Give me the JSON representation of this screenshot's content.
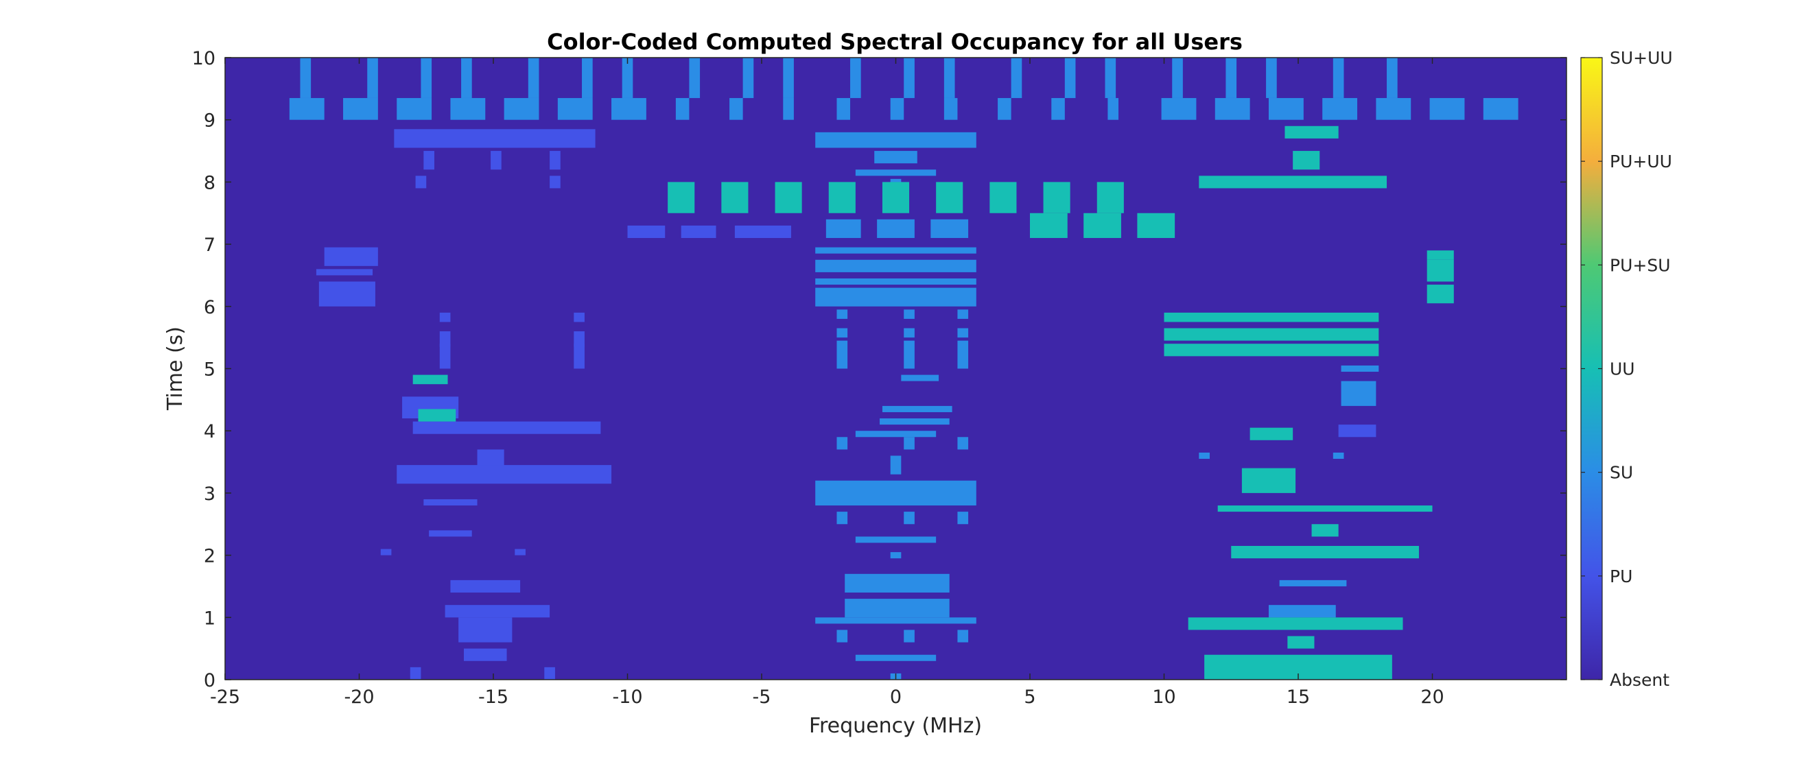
{
  "chart_data": {
    "type": "heatmap",
    "title": "Color-Coded Computed Spectral Occupancy for all Users",
    "xlabel": "Frequency (MHz)",
    "ylabel": "Time (s)",
    "xlim": [
      -25,
      25
    ],
    "ylim": [
      0,
      10
    ],
    "xticks": [
      -25,
      -20,
      -15,
      -10,
      -5,
      0,
      5,
      10,
      15,
      20
    ],
    "xtick_labels": [
      "-25",
      "-20",
      "-15",
      "-10",
      "-5",
      "0",
      "5",
      "10",
      "15",
      "20"
    ],
    "yticks": [
      0,
      1,
      2,
      3,
      4,
      5,
      6,
      7,
      8,
      9,
      10
    ],
    "ytick_labels": [
      "0",
      "1",
      "2",
      "3",
      "4",
      "5",
      "6",
      "7",
      "8",
      "9",
      "10"
    ],
    "background_class": "Absent",
    "colorbar": {
      "labels": [
        "Absent",
        "PU",
        "SU",
        "UU",
        "PU+SU",
        "PU+UU",
        "SU+UU"
      ],
      "colors": [
        "#3e26a8",
        "#4353e8",
        "#2b8de6",
        "#17bfb4",
        "#4ec974",
        "#f4ae3d",
        "#f9f716"
      ]
    },
    "classes": {
      "PU": "#4353e8",
      "SU": "#2b8de6",
      "UU": "#17bfb4"
    },
    "occupancy": [
      {
        "x0": -18.7,
        "x1": -11.2,
        "y0": 8.55,
        "y1": 8.85,
        "class": "PU"
      },
      {
        "x0": -17.6,
        "x1": -17.2,
        "y0": 8.2,
        "y1": 8.5,
        "class": "PU"
      },
      {
        "x0": -15.1,
        "x1": -14.7,
        "y0": 8.2,
        "y1": 8.5,
        "class": "PU"
      },
      {
        "x0": -12.9,
        "x1": -12.5,
        "y0": 8.2,
        "y1": 8.5,
        "class": "PU"
      },
      {
        "x0": -17.9,
        "x1": -17.5,
        "y0": 7.9,
        "y1": 8.1,
        "class": "PU"
      },
      {
        "x0": -12.9,
        "x1": -12.5,
        "y0": 7.9,
        "y1": 8.1,
        "class": "PU"
      },
      {
        "x0": -10.0,
        "x1": -8.6,
        "y0": 7.1,
        "y1": 7.3,
        "class": "PU"
      },
      {
        "x0": -8.0,
        "x1": -6.7,
        "y0": 7.1,
        "y1": 7.3,
        "class": "PU"
      },
      {
        "x0": -6.0,
        "x1": -3.9,
        "y0": 7.1,
        "y1": 7.3,
        "class": "PU"
      },
      {
        "x0": -21.3,
        "x1": -19.3,
        "y0": 6.65,
        "y1": 6.95,
        "class": "PU"
      },
      {
        "x0": -21.6,
        "x1": -19.5,
        "y0": 6.5,
        "y1": 6.6,
        "class": "PU"
      },
      {
        "x0": -21.5,
        "x1": -19.4,
        "y0": 6.0,
        "y1": 6.4,
        "class": "PU"
      },
      {
        "x0": -17.0,
        "x1": -16.6,
        "y0": 5.75,
        "y1": 5.9,
        "class": "PU"
      },
      {
        "x0": -17.0,
        "x1": -16.6,
        "y0": 5.35,
        "y1": 5.6,
        "class": "PU"
      },
      {
        "x0": -17.0,
        "x1": -16.6,
        "y0": 5.0,
        "y1": 5.4,
        "class": "PU"
      },
      {
        "x0": -12.0,
        "x1": -11.6,
        "y0": 5.75,
        "y1": 5.9,
        "class": "PU"
      },
      {
        "x0": -12.0,
        "x1": -11.6,
        "y0": 5.35,
        "y1": 5.6,
        "class": "PU"
      },
      {
        "x0": -12.0,
        "x1": -11.6,
        "y0": 5.0,
        "y1": 5.4,
        "class": "PU"
      },
      {
        "x0": -18.4,
        "x1": -16.3,
        "y0": 4.2,
        "y1": 4.55,
        "class": "PU"
      },
      {
        "x0": -18.0,
        "x1": -11.0,
        "y0": 3.95,
        "y1": 4.15,
        "class": "PU"
      },
      {
        "x0": -15.6,
        "x1": -14.6,
        "y0": 3.4,
        "y1": 3.7,
        "class": "PU"
      },
      {
        "x0": -18.6,
        "x1": -10.6,
        "y0": 3.15,
        "y1": 3.45,
        "class": "PU"
      },
      {
        "x0": -17.6,
        "x1": -15.6,
        "y0": 2.8,
        "y1": 2.9,
        "class": "PU"
      },
      {
        "x0": -17.4,
        "x1": -15.8,
        "y0": 2.3,
        "y1": 2.4,
        "class": "PU"
      },
      {
        "x0": -19.2,
        "x1": -18.8,
        "y0": 2.0,
        "y1": 2.1,
        "class": "PU"
      },
      {
        "x0": -14.2,
        "x1": -13.8,
        "y0": 2.0,
        "y1": 2.1,
        "class": "PU"
      },
      {
        "x0": -16.6,
        "x1": -14.0,
        "y0": 1.4,
        "y1": 1.6,
        "class": "PU"
      },
      {
        "x0": -16.8,
        "x1": -12.9,
        "y0": 1.0,
        "y1": 1.2,
        "class": "PU"
      },
      {
        "x0": -16.3,
        "x1": -14.3,
        "y0": 0.6,
        "y1": 1.0,
        "class": "PU"
      },
      {
        "x0": -16.1,
        "x1": -14.5,
        "y0": 0.3,
        "y1": 0.5,
        "class": "PU"
      },
      {
        "x0": -18.1,
        "x1": -17.7,
        "y0": 0.0,
        "y1": 0.2,
        "class": "PU"
      },
      {
        "x0": -13.1,
        "x1": -12.7,
        "y0": 0.0,
        "y1": 0.2,
        "class": "PU"
      },
      {
        "x0": 16.5,
        "x1": 17.9,
        "y0": 3.9,
        "y1": 4.1,
        "class": "PU"
      },
      {
        "x0": -22.6,
        "x1": -21.3,
        "y0": 9.0,
        "y1": 9.35,
        "class": "SU"
      },
      {
        "x0": -20.6,
        "x1": -19.3,
        "y0": 9.0,
        "y1": 9.35,
        "class": "SU"
      },
      {
        "x0": -18.6,
        "x1": -17.3,
        "y0": 9.0,
        "y1": 9.35,
        "class": "SU"
      },
      {
        "x0": -16.6,
        "x1": -15.3,
        "y0": 9.0,
        "y1": 9.35,
        "class": "SU"
      },
      {
        "x0": -14.6,
        "x1": -13.3,
        "y0": 9.0,
        "y1": 9.35,
        "class": "SU"
      },
      {
        "x0": -12.6,
        "x1": -11.3,
        "y0": 9.0,
        "y1": 9.35,
        "class": "SU"
      },
      {
        "x0": -10.6,
        "x1": -9.3,
        "y0": 9.0,
        "y1": 9.35,
        "class": "SU"
      },
      {
        "x0": -8.2,
        "x1": -7.7,
        "y0": 9.0,
        "y1": 9.35,
        "class": "SU"
      },
      {
        "x0": -6.2,
        "x1": -5.7,
        "y0": 9.0,
        "y1": 9.35,
        "class": "SU"
      },
      {
        "x0": -4.2,
        "x1": -3.8,
        "y0": 9.0,
        "y1": 9.35,
        "class": "SU"
      },
      {
        "x0": -2.2,
        "x1": -1.7,
        "y0": 9.0,
        "y1": 9.35,
        "class": "SU"
      },
      {
        "x0": -0.2,
        "x1": 0.3,
        "y0": 9.0,
        "y1": 9.35,
        "class": "SU"
      },
      {
        "x0": 1.8,
        "x1": 2.3,
        "y0": 9.0,
        "y1": 9.35,
        "class": "SU"
      },
      {
        "x0": 3.8,
        "x1": 4.3,
        "y0": 9.0,
        "y1": 9.35,
        "class": "SU"
      },
      {
        "x0": 5.8,
        "x1": 6.3,
        "y0": 9.0,
        "y1": 9.35,
        "class": "SU"
      },
      {
        "x0": 7.9,
        "x1": 8.3,
        "y0": 9.0,
        "y1": 9.35,
        "class": "SU"
      },
      {
        "x0": 9.9,
        "x1": 11.2,
        "y0": 9.0,
        "y1": 9.35,
        "class": "SU"
      },
      {
        "x0": 11.9,
        "x1": 13.2,
        "y0": 9.0,
        "y1": 9.35,
        "class": "SU"
      },
      {
        "x0": 13.9,
        "x1": 15.2,
        "y0": 9.0,
        "y1": 9.35,
        "class": "SU"
      },
      {
        "x0": 15.9,
        "x1": 17.2,
        "y0": 9.0,
        "y1": 9.35,
        "class": "SU"
      },
      {
        "x0": 17.9,
        "x1": 19.2,
        "y0": 9.0,
        "y1": 9.35,
        "class": "SU"
      },
      {
        "x0": 19.9,
        "x1": 21.2,
        "y0": 9.0,
        "y1": 9.35,
        "class": "SU"
      },
      {
        "x0": 21.9,
        "x1": 23.2,
        "y0": 9.0,
        "y1": 9.35,
        "class": "SU"
      },
      {
        "x0": -22.2,
        "x1": -21.8,
        "y0": 9.35,
        "y1": 10.0,
        "class": "SU"
      },
      {
        "x0": -19.7,
        "x1": -19.3,
        "y0": 9.35,
        "y1": 10.0,
        "class": "SU"
      },
      {
        "x0": -17.7,
        "x1": -17.3,
        "y0": 9.35,
        "y1": 10.0,
        "class": "SU"
      },
      {
        "x0": -16.2,
        "x1": -15.8,
        "y0": 9.35,
        "y1": 10.0,
        "class": "SU"
      },
      {
        "x0": -13.7,
        "x1": -13.3,
        "y0": 9.35,
        "y1": 10.0,
        "class": "SU"
      },
      {
        "x0": -11.7,
        "x1": -11.3,
        "y0": 9.35,
        "y1": 10.0,
        "class": "SU"
      },
      {
        "x0": -10.2,
        "x1": -9.8,
        "y0": 9.35,
        "y1": 10.0,
        "class": "SU"
      },
      {
        "x0": -7.7,
        "x1": -7.3,
        "y0": 9.35,
        "y1": 10.0,
        "class": "SU"
      },
      {
        "x0": -5.7,
        "x1": -5.3,
        "y0": 9.35,
        "y1": 10.0,
        "class": "SU"
      },
      {
        "x0": -4.2,
        "x1": -3.8,
        "y0": 9.35,
        "y1": 10.0,
        "class": "SU"
      },
      {
        "x0": -1.7,
        "x1": -1.3,
        "y0": 9.35,
        "y1": 10.0,
        "class": "SU"
      },
      {
        "x0": 0.3,
        "x1": 0.7,
        "y0": 9.35,
        "y1": 10.0,
        "class": "SU"
      },
      {
        "x0": 1.8,
        "x1": 2.2,
        "y0": 9.35,
        "y1": 10.0,
        "class": "SU"
      },
      {
        "x0": 4.3,
        "x1": 4.7,
        "y0": 9.35,
        "y1": 10.0,
        "class": "SU"
      },
      {
        "x0": 6.3,
        "x1": 6.7,
        "y0": 9.35,
        "y1": 10.0,
        "class": "SU"
      },
      {
        "x0": 7.8,
        "x1": 8.2,
        "y0": 9.35,
        "y1": 10.0,
        "class": "SU"
      },
      {
        "x0": 10.3,
        "x1": 10.7,
        "y0": 9.35,
        "y1": 10.0,
        "class": "SU"
      },
      {
        "x0": 12.3,
        "x1": 12.7,
        "y0": 9.35,
        "y1": 10.0,
        "class": "SU"
      },
      {
        "x0": 13.8,
        "x1": 14.2,
        "y0": 9.35,
        "y1": 10.0,
        "class": "SU"
      },
      {
        "x0": 16.3,
        "x1": 16.7,
        "y0": 9.35,
        "y1": 10.0,
        "class": "SU"
      },
      {
        "x0": 18.3,
        "x1": 18.7,
        "y0": 9.35,
        "y1": 10.0,
        "class": "SU"
      },
      {
        "x0": -3.0,
        "x1": 3.0,
        "y0": 8.55,
        "y1": 8.8,
        "class": "SU"
      },
      {
        "x0": -0.8,
        "x1": 0.8,
        "y0": 8.3,
        "y1": 8.5,
        "class": "SU"
      },
      {
        "x0": -1.5,
        "x1": 1.5,
        "y0": 8.1,
        "y1": 8.2,
        "class": "SU"
      },
      {
        "x0": -0.2,
        "x1": 0.2,
        "y0": 7.9,
        "y1": 8.05,
        "class": "SU"
      },
      {
        "x0": -2.6,
        "x1": -1.3,
        "y0": 7.1,
        "y1": 7.4,
        "class": "SU"
      },
      {
        "x0": -0.7,
        "x1": 0.7,
        "y0": 7.1,
        "y1": 7.4,
        "class": "SU"
      },
      {
        "x0": 1.3,
        "x1": 2.7,
        "y0": 7.1,
        "y1": 7.4,
        "class": "SU"
      },
      {
        "x0": -3.0,
        "x1": 3.0,
        "y0": 6.85,
        "y1": 6.95,
        "class": "SU"
      },
      {
        "x0": -3.0,
        "x1": 3.0,
        "y0": 6.55,
        "y1": 6.75,
        "class": "SU"
      },
      {
        "x0": -3.0,
        "x1": 3.0,
        "y0": 6.35,
        "y1": 6.45,
        "class": "SU"
      },
      {
        "x0": -3.0,
        "x1": 3.0,
        "y0": 6.0,
        "y1": 6.3,
        "class": "SU"
      },
      {
        "x0": -2.2,
        "x1": -1.8,
        "y0": 5.8,
        "y1": 5.95,
        "class": "SU"
      },
      {
        "x0": 0.3,
        "x1": 0.7,
        "y0": 5.8,
        "y1": 5.95,
        "class": "SU"
      },
      {
        "x0": 2.3,
        "x1": 2.7,
        "y0": 5.8,
        "y1": 5.95,
        "class": "SU"
      },
      {
        "x0": -2.2,
        "x1": -1.8,
        "y0": 5.5,
        "y1": 5.65,
        "class": "SU"
      },
      {
        "x0": 0.3,
        "x1": 0.7,
        "y0": 5.5,
        "y1": 5.65,
        "class": "SU"
      },
      {
        "x0": 2.3,
        "x1": 2.7,
        "y0": 5.5,
        "y1": 5.65,
        "class": "SU"
      },
      {
        "x0": -2.2,
        "x1": -1.8,
        "y0": 5.0,
        "y1": 5.45,
        "class": "SU"
      },
      {
        "x0": 0.3,
        "x1": 0.7,
        "y0": 5.0,
        "y1": 5.45,
        "class": "SU"
      },
      {
        "x0": 2.3,
        "x1": 2.7,
        "y0": 5.0,
        "y1": 5.45,
        "class": "SU"
      },
      {
        "x0": 0.2,
        "x1": 1.6,
        "y0": 4.8,
        "y1": 4.9,
        "class": "SU"
      },
      {
        "x0": -0.5,
        "x1": 2.1,
        "y0": 4.3,
        "y1": 4.4,
        "class": "SU"
      },
      {
        "x0": -0.6,
        "x1": 2.0,
        "y0": 4.1,
        "y1": 4.2,
        "class": "SU"
      },
      {
        "x0": -1.5,
        "x1": 1.5,
        "y0": 3.9,
        "y1": 4.0,
        "class": "SU"
      },
      {
        "x0": -2.2,
        "x1": -1.8,
        "y0": 3.7,
        "y1": 3.9,
        "class": "SU"
      },
      {
        "x0": 0.3,
        "x1": 0.7,
        "y0": 3.7,
        "y1": 3.9,
        "class": "SU"
      },
      {
        "x0": 2.3,
        "x1": 2.7,
        "y0": 3.7,
        "y1": 3.9,
        "class": "SU"
      },
      {
        "x0": -0.2,
        "x1": 0.2,
        "y0": 3.3,
        "y1": 3.6,
        "class": "SU"
      },
      {
        "x0": -3.0,
        "x1": 3.0,
        "y0": 2.8,
        "y1": 3.2,
        "class": "SU"
      },
      {
        "x0": -2.2,
        "x1": -1.8,
        "y0": 2.5,
        "y1": 2.7,
        "class": "SU"
      },
      {
        "x0": 0.3,
        "x1": 0.7,
        "y0": 2.5,
        "y1": 2.7,
        "class": "SU"
      },
      {
        "x0": 2.3,
        "x1": 2.7,
        "y0": 2.5,
        "y1": 2.7,
        "class": "SU"
      },
      {
        "x0": -1.5,
        "x1": 1.5,
        "y0": 2.2,
        "y1": 2.3,
        "class": "SU"
      },
      {
        "x0": -0.2,
        "x1": 0.2,
        "y0": 1.95,
        "y1": 2.05,
        "class": "SU"
      },
      {
        "x0": -1.9,
        "x1": 2.0,
        "y0": 1.4,
        "y1": 1.7,
        "class": "SU"
      },
      {
        "x0": -1.9,
        "x1": 2.0,
        "y0": 1.0,
        "y1": 1.3,
        "class": "SU"
      },
      {
        "x0": -3.0,
        "x1": 3.0,
        "y0": 0.9,
        "y1": 1.0,
        "class": "SU"
      },
      {
        "x0": -2.2,
        "x1": -1.8,
        "y0": 0.6,
        "y1": 0.8,
        "class": "SU"
      },
      {
        "x0": 0.3,
        "x1": 0.7,
        "y0": 0.6,
        "y1": 0.8,
        "class": "SU"
      },
      {
        "x0": 2.3,
        "x1": 2.7,
        "y0": 0.6,
        "y1": 0.8,
        "class": "SU"
      },
      {
        "x0": -1.5,
        "x1": 1.5,
        "y0": 0.3,
        "y1": 0.4,
        "class": "SU"
      },
      {
        "x0": -0.2,
        "x1": 0.2,
        "y0": 0.0,
        "y1": 0.1,
        "class": "SU"
      },
      {
        "x0": 16.6,
        "x1": 18.0,
        "y0": 4.95,
        "y1": 5.05,
        "class": "SU"
      },
      {
        "x0": 16.6,
        "x1": 17.9,
        "y0": 4.4,
        "y1": 4.8,
        "class": "SU"
      },
      {
        "x0": 11.3,
        "x1": 11.7,
        "y0": 3.55,
        "y1": 3.65,
        "class": "SU"
      },
      {
        "x0": 16.3,
        "x1": 16.7,
        "y0": 3.55,
        "y1": 3.65,
        "class": "SU"
      },
      {
        "x0": 13.9,
        "x1": 16.4,
        "y0": 1.0,
        "y1": 1.2,
        "class": "SU"
      },
      {
        "x0": 14.3,
        "x1": 16.8,
        "y0": 1.5,
        "y1": 1.6,
        "class": "SU"
      },
      {
        "x0": 14.5,
        "x1": 16.5,
        "y0": 8.7,
        "y1": 8.9,
        "class": "UU"
      },
      {
        "x0": 14.8,
        "x1": 15.8,
        "y0": 8.2,
        "y1": 8.5,
        "class": "UU"
      },
      {
        "x0": 11.3,
        "x1": 18.3,
        "y0": 7.9,
        "y1": 8.1,
        "class": "UU"
      },
      {
        "x0": -8.5,
        "x1": -7.5,
        "y0": 7.5,
        "y1": 8.0,
        "class": "UU"
      },
      {
        "x0": -6.5,
        "x1": -5.5,
        "y0": 7.5,
        "y1": 8.0,
        "class": "UU"
      },
      {
        "x0": -4.5,
        "x1": -3.5,
        "y0": 7.5,
        "y1": 8.0,
        "class": "UU"
      },
      {
        "x0": -2.5,
        "x1": -1.5,
        "y0": 7.5,
        "y1": 8.0,
        "class": "UU"
      },
      {
        "x0": -0.5,
        "x1": 0.5,
        "y0": 7.5,
        "y1": 8.0,
        "class": "UU"
      },
      {
        "x0": 1.5,
        "x1": 2.5,
        "y0": 7.5,
        "y1": 8.0,
        "class": "UU"
      },
      {
        "x0": 3.5,
        "x1": 4.5,
        "y0": 7.5,
        "y1": 8.0,
        "class": "UU"
      },
      {
        "x0": 5.5,
        "x1": 6.5,
        "y0": 7.5,
        "y1": 8.0,
        "class": "UU"
      },
      {
        "x0": 7.5,
        "x1": 8.5,
        "y0": 7.5,
        "y1": 8.0,
        "class": "UU"
      },
      {
        "x0": 5.0,
        "x1": 6.4,
        "y0": 7.1,
        "y1": 7.5,
        "class": "UU"
      },
      {
        "x0": 7.0,
        "x1": 8.4,
        "y0": 7.1,
        "y1": 7.5,
        "class": "UU"
      },
      {
        "x0": 9.0,
        "x1": 10.4,
        "y0": 7.1,
        "y1": 7.5,
        "class": "UU"
      },
      {
        "x0": 19.8,
        "x1": 20.8,
        "y0": 6.75,
        "y1": 6.9,
        "class": "UU"
      },
      {
        "x0": 19.8,
        "x1": 20.8,
        "y0": 6.4,
        "y1": 6.75,
        "class": "UU"
      },
      {
        "x0": 19.8,
        "x1": 20.8,
        "y0": 6.05,
        "y1": 6.35,
        "class": "UU"
      },
      {
        "x0": 10.0,
        "x1": 18.0,
        "y0": 5.75,
        "y1": 5.9,
        "class": "UU"
      },
      {
        "x0": 10.0,
        "x1": 18.0,
        "y0": 5.45,
        "y1": 5.65,
        "class": "UU"
      },
      {
        "x0": 10.0,
        "x1": 18.0,
        "y0": 5.2,
        "y1": 5.4,
        "class": "UU"
      },
      {
        "x0": -18.0,
        "x1": -16.7,
        "y0": 4.75,
        "y1": 4.9,
        "class": "UU"
      },
      {
        "x0": -17.8,
        "x1": -16.4,
        "y0": 4.15,
        "y1": 4.35,
        "class": "UU"
      },
      {
        "x0": 13.2,
        "x1": 14.8,
        "y0": 3.85,
        "y1": 4.05,
        "class": "UU"
      },
      {
        "x0": 12.9,
        "x1": 14.9,
        "y0": 3.0,
        "y1": 3.4,
        "class": "UU"
      },
      {
        "x0": 12.0,
        "x1": 20.0,
        "y0": 2.7,
        "y1": 2.8,
        "class": "UU"
      },
      {
        "x0": 15.5,
        "x1": 16.5,
        "y0": 2.3,
        "y1": 2.5,
        "class": "UU"
      },
      {
        "x0": 12.5,
        "x1": 19.5,
        "y0": 1.95,
        "y1": 2.15,
        "class": "UU"
      },
      {
        "x0": 10.9,
        "x1": 18.9,
        "y0": 0.8,
        "y1": 1.0,
        "class": "UU"
      },
      {
        "x0": 14.6,
        "x1": 15.6,
        "y0": 0.5,
        "y1": 0.7,
        "class": "UU"
      },
      {
        "x0": 11.5,
        "x1": 18.5,
        "y0": 0.0,
        "y1": 0.4,
        "class": "UU"
      }
    ]
  }
}
